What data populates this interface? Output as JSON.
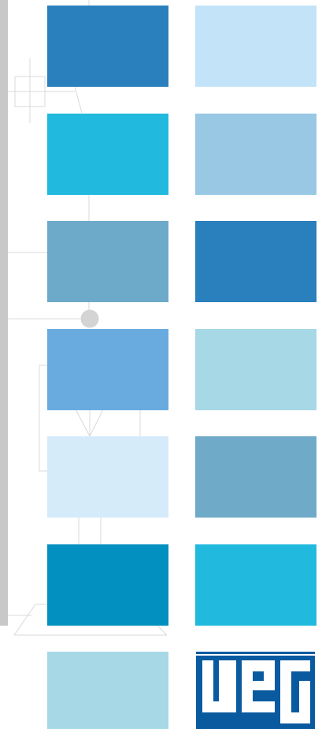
{
  "brand": {
    "logo_text": "WEG",
    "logo_color": "#0a5aa0"
  },
  "decor": {
    "side_bar_color": "#c8c8c8",
    "line_color": "#d9d9d9",
    "dot_color": "#d4d4d4"
  },
  "swatches": [
    {
      "name": "row1-left",
      "color": "#2a7fbd"
    },
    {
      "name": "row1-right",
      "color": "#c3e4f8"
    },
    {
      "name": "row2-left",
      "color": "#21bade"
    },
    {
      "name": "row2-right",
      "color": "#98c8e4"
    },
    {
      "name": "row3-left",
      "color": "#6da9c8"
    },
    {
      "name": "row3-right",
      "color": "#2a7fbd"
    },
    {
      "name": "row4-left",
      "color": "#6aabdf"
    },
    {
      "name": "row4-right",
      "color": "#a6d8e6"
    },
    {
      "name": "row5-left",
      "color": "#d6ebf9"
    },
    {
      "name": "row5-right",
      "color": "#6faac9"
    },
    {
      "name": "row6-left",
      "color": "#0290c0"
    },
    {
      "name": "row6-right",
      "color": "#21bade"
    },
    {
      "name": "row7-left",
      "color": "#a6d8e6"
    }
  ]
}
